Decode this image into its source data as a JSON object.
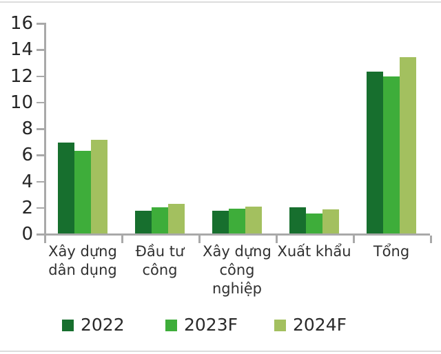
{
  "chart_data": {
    "type": "bar",
    "title": "",
    "xlabel": "",
    "ylabel": "",
    "categories": [
      "Xây dựng dân dụng",
      "Đầu tư công",
      "Xây dựng công nghiệp",
      "Xuất khẩu",
      "Tổng"
    ],
    "category_display_lines": [
      [
        "Xây dựng",
        "dân dụng"
      ],
      [
        "Đầu tư",
        "công"
      ],
      [
        "Xây dựng",
        "công",
        "nghiệp"
      ],
      [
        "Xuất khẩu"
      ],
      [
        "Tổng"
      ]
    ],
    "series": [
      {
        "name": "2022",
        "color": "#176f2e",
        "values": [
          6.9,
          1.7,
          1.7,
          2.0,
          12.3
        ]
      },
      {
        "name": "2023F",
        "color": "#3ead3a",
        "values": [
          6.3,
          2.0,
          1.9,
          1.5,
          11.9
        ]
      },
      {
        "name": "2024F",
        "color": "#a3c05f",
        "values": [
          7.1,
          2.25,
          2.05,
          1.85,
          13.4
        ]
      }
    ],
    "y_ticks": [
      0,
      2,
      4,
      6,
      8,
      10,
      12,
      14,
      16
    ],
    "ylim": [
      0,
      16
    ],
    "grid": false,
    "legend_position": "bottom"
  },
  "colors": {
    "axis": "#a9a9a9",
    "tick_label_text": "#252525",
    "category_label_text": "#303030",
    "legend_text": "#2a2a2a",
    "background": "#ffffff",
    "border_line": "#dcdcdc"
  }
}
